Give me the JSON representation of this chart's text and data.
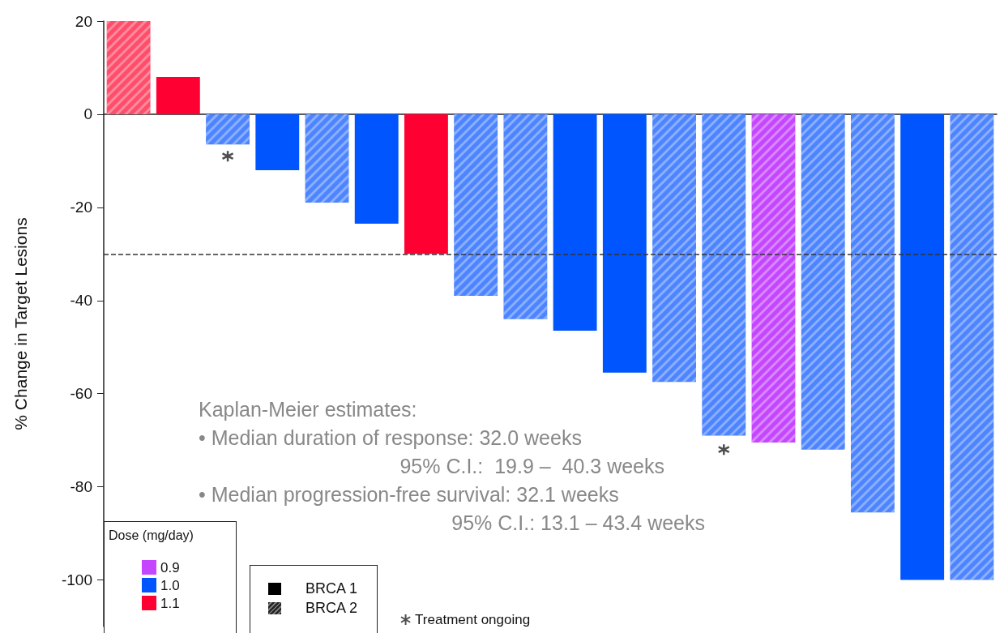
{
  "chart_data": {
    "type": "bar",
    "ylabel": "% Change in Target Lesions",
    "legend_title": "Dose (mg/day)",
    "legend": "bottom left",
    "categories": [
      null,
      null,
      null,
      null,
      null,
      null,
      null,
      null,
      null,
      null,
      null,
      null,
      null,
      null,
      null,
      null,
      null,
      null
    ],
    "stacked": true,
    "ylim": [
      -110,
      20
    ],
    "yticks": [
      20,
      0,
      -20,
      -40,
      -60,
      -80,
      -100
    ],
    "series": [
      {
        "name": "0.9",
        "color": "#bb22ff",
        "values": [
          null,
          null,
          null,
          null,
          null,
          null,
          null,
          null,
          null,
          null,
          null,
          null,
          null,
          -70.5,
          null,
          null,
          null,
          null
        ],
        "colors": [
          null,
          null,
          null,
          null,
          null,
          null,
          null,
          null,
          null,
          null,
          null,
          null,
          null,
          "#c447ff",
          null,
          null,
          null,
          null
        ]
      },
      {
        "name": "1.0",
        "color": "#0055ff",
        "values": [
          null,
          null,
          -6.5,
          -12,
          -19,
          -23.5,
          null,
          -39,
          -44,
          -46.5,
          -55.5,
          -57.5,
          -69,
          null,
          -72,
          -85.5,
          -100,
          -100
        ],
        "colors": [
          null,
          null,
          "#4d84ff",
          "#0055ff",
          "#4d84ff",
          "#0055ff",
          null,
          "#4d84ff",
          "#4d84ff",
          "#0055ff",
          "#0055ff",
          "#4d84ff",
          "#4d84ff",
          null,
          "#4d84ff",
          "#4d84ff",
          "#0055ff",
          "#4d84ff"
        ]
      },
      {
        "name": "1.1",
        "color": "#ff0033",
        "values": [
          20,
          8,
          null,
          null,
          null,
          null,
          -30,
          null,
          null,
          null,
          null,
          null,
          null,
          null,
          null,
          null,
          null,
          null
        ],
        "colors": [
          "#ff4d6a",
          "#ff0033",
          null,
          null,
          null,
          null,
          "#ff0033",
          null,
          null,
          null,
          null,
          null,
          null,
          null,
          null,
          null,
          null,
          null
        ]
      },
      {
        "name": "Treatment ongoing",
        "type": "scatter",
        "marker": "cross",
        "color": "#222222",
        "values": [
          null,
          null,
          -9,
          null,
          null,
          null,
          null,
          null,
          null,
          null,
          null,
          null,
          -72,
          null,
          null,
          null,
          null,
          null
        ]
      }
    ],
    "ref_lines": [
      {
        "axis": "y",
        "value": -30,
        "label": null,
        "color": "#333333",
        "line_style": "dashed"
      }
    ],
    "annotations": [
      "Kaplan-Meier estimates:",
      "• Median duration of response: 32.0 weeks",
      "95% C.I.:  19.9 –  40.3 weeks",
      "• Median progression-free survival: 32.1 weeks",
      "95% C.I.: 13.1 – 43.4 weeks",
      "BRCA 1",
      "BRCA 2"
    ]
  }
}
